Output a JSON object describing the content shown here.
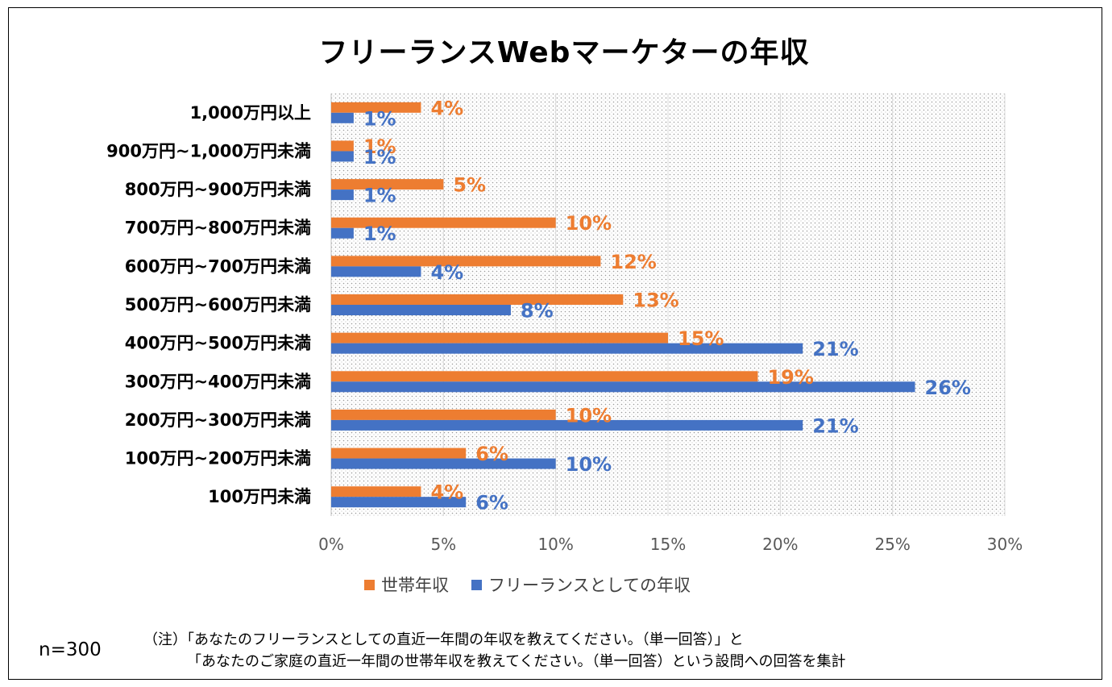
{
  "chart_data": {
    "type": "bar",
    "orientation": "horizontal",
    "title": "フリーランスWebマーケターの年収",
    "categories": [
      "1,000万円以上",
      "900万円~1,000万円未満",
      "800万円~900万円未満",
      "700万円~800万円未満",
      "600万円~700万円未満",
      "500万円~600万円未満",
      "400万円~500万円未満",
      "300万円~400万円未満",
      "200万円~300万円未満",
      "100万円~200万円未満",
      "100万円未満"
    ],
    "series": [
      {
        "name": "世帯年収",
        "color": "#ED7D31",
        "values": [
          4,
          1,
          5,
          10,
          12,
          13,
          15,
          19,
          10,
          6,
          4
        ],
        "labels": [
          "4%",
          "1%",
          "5%",
          "10%",
          "12%",
          "13%",
          "15%",
          "19%",
          "10%",
          "6%",
          "4%"
        ]
      },
      {
        "name": "フリーランスとしての年収",
        "color": "#4472C4",
        "values": [
          1,
          1,
          1,
          1,
          4,
          8,
          21,
          26,
          21,
          10,
          6
        ],
        "labels": [
          "1%",
          "1%",
          "1%",
          "1%",
          "4%",
          "8%",
          "21%",
          "26%",
          "21%",
          "10%",
          "6%"
        ]
      }
    ],
    "xlim": [
      0,
      30
    ],
    "xticks": [
      0,
      5,
      10,
      15,
      20,
      25,
      30
    ],
    "xtick_labels": [
      "0%",
      "5%",
      "10%",
      "15%",
      "20%",
      "25%",
      "30%"
    ],
    "grid": true,
    "legend_position": "bottom",
    "plot_background": "dotted"
  },
  "footer": {
    "sample_size": "n=300",
    "note_line1": "（注）「あなたのフリーランスとしての直近一年間の年収を教えてください。（単一回答）」と",
    "note_line2": "「あなたのご家庭の直近一年間の世帯年収を教えてください。（単一回答）という設問への回答を集計"
  }
}
